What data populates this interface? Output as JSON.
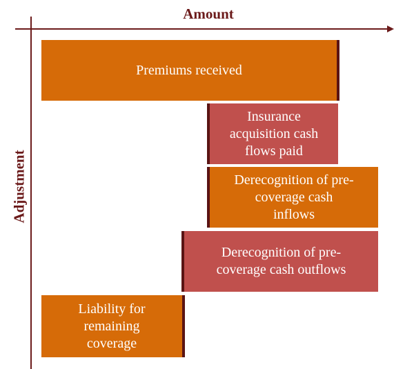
{
  "axes": {
    "x_label": "Amount",
    "y_label": "Adjustment"
  },
  "blocks": [
    {
      "lines": [
        "Premiums received"
      ]
    },
    {
      "lines": [
        "Insurance",
        "acquisition cash",
        "flows paid"
      ]
    },
    {
      "lines": [
        "Derecognition of pre-",
        "coverage cash",
        "inflows"
      ]
    },
    {
      "lines": [
        "Derecognition of pre-",
        "coverage cash outflows"
      ]
    },
    {
      "lines": [
        "Liability for",
        "remaining",
        "coverage"
      ]
    }
  ]
}
